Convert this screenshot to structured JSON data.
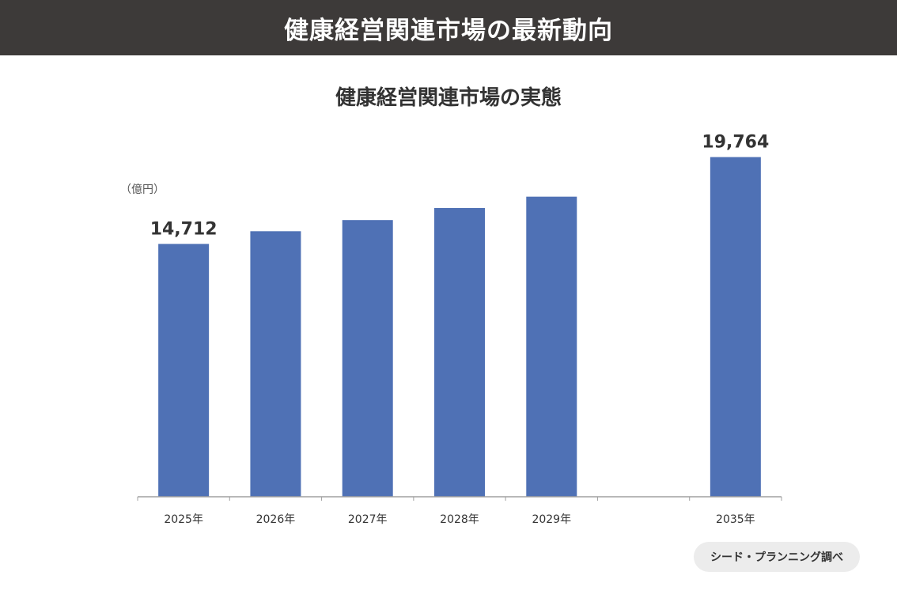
{
  "header": {
    "title": "健康経営関連市場の最新動向"
  },
  "source": "シード・プランニング調べ",
  "colors": {
    "header_bg": "#3d3a39",
    "bar": "#4f71b5",
    "axis": "#a0a0a0",
    "text": "#333333",
    "badge_bg": "#ececec"
  },
  "chart_data": {
    "type": "bar",
    "title": "健康経営関連市場の実態",
    "ylabel": "（億円）",
    "xlabel": "",
    "categories": [
      "2025年",
      "2026年",
      "2027年",
      "2028年",
      "2029年",
      "",
      "2035年"
    ],
    "values": [
      14712,
      15450,
      16100,
      16800,
      17460,
      null,
      19764
    ],
    "data_labels": [
      "14,712",
      null,
      null,
      null,
      null,
      null,
      "19,764"
    ],
    "ylim": [
      0,
      22000
    ],
    "grid": false,
    "legend": "none"
  }
}
